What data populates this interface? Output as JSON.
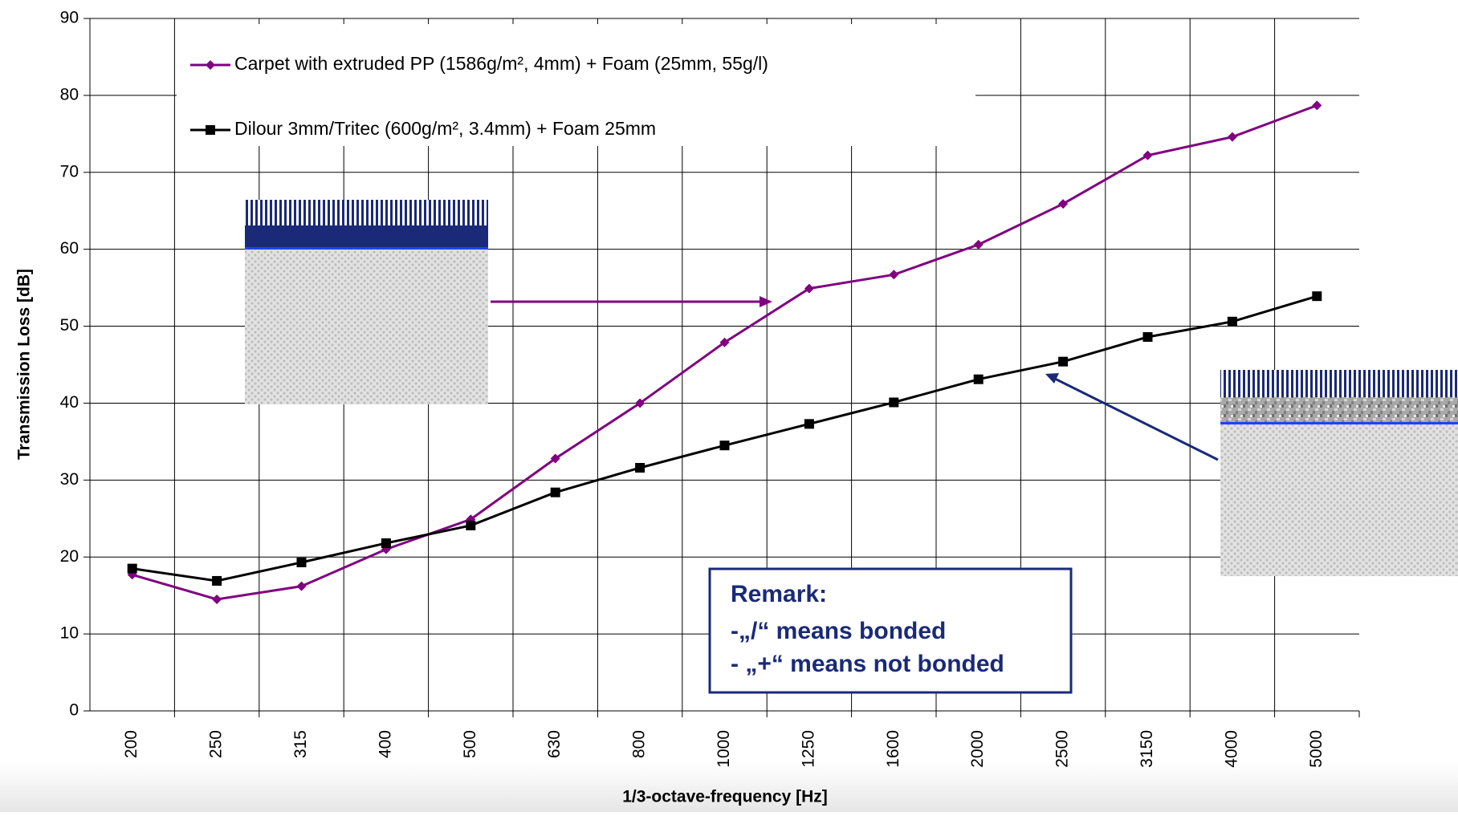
{
  "chart_data": {
    "type": "line",
    "x_label": "1/3-octave-frequency [Hz]",
    "y_label": "Transmission Loss [dB]",
    "categories": [
      "200",
      "250",
      "315",
      "400",
      "500",
      "630",
      "800",
      "1000",
      "1250",
      "1600",
      "2000",
      "2500",
      "3150",
      "4000",
      "5000"
    ],
    "series": [
      {
        "name": "Carpet with extruded PP (1586g/m², 4mm) + Foam (25mm, 55g/l)",
        "color": "#800080",
        "marker": "diamond",
        "values": [
          17.7,
          14.5,
          16.2,
          21.0,
          24.9,
          32.8,
          40.0,
          47.9,
          54.9,
          56.7,
          60.6,
          65.9,
          72.2,
          74.6,
          78.7
        ]
      },
      {
        "name": "Dilour 3mm/Tritec (600g/m², 3.4mm) + Foam 25mm",
        "color": "#000000",
        "marker": "square",
        "values": [
          18.5,
          16.9,
          19.3,
          21.8,
          24.1,
          28.4,
          31.6,
          34.5,
          37.3,
          40.1,
          43.1,
          45.4,
          48.6,
          50.6,
          53.9
        ]
      }
    ],
    "ylim": [
      0,
      90
    ],
    "yticks": [
      0,
      10,
      20,
      30,
      40,
      50,
      60,
      70,
      80,
      90
    ],
    "grid": true,
    "legend": "top-left",
    "remark": {
      "title": "Remark:",
      "lines": [
        "-„/“ means bonded",
        "- „+“ means not bonded"
      ]
    }
  }
}
